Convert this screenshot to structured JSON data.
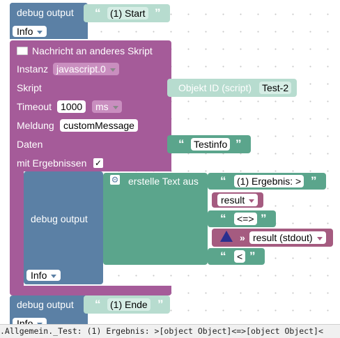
{
  "debug_start": {
    "label": "debug output",
    "text": "(1) Start",
    "level": "Info"
  },
  "send_message": {
    "header": "Nachricht an anderes Skript",
    "instance_label": "Instanz",
    "instance_value": "javascript.0",
    "script_label": "Skript",
    "script_object_label": "Objekt ID (script)",
    "script_object_value": "Test-2",
    "timeout_label": "Timeout",
    "timeout_value": "1000",
    "timeout_unit": "ms",
    "message_label": "Meldung",
    "message_value": "customMessage",
    "data_label": "Daten",
    "data_value": "Testinfo",
    "with_results_label": "mit Ergebnissen",
    "with_results_checked": "✓"
  },
  "debug_inner": {
    "label": "debug output",
    "level": "Info",
    "create_text_label": "erstelle Text aus",
    "items": {
      "text1": "(1) Ergebnis: >",
      "var1": "result",
      "text2": "<=>",
      "stdout_label": "result (stdout)",
      "text3": "<"
    }
  },
  "debug_end": {
    "label": "debug output",
    "text": "(1) Ende",
    "level": "Info"
  },
  "console_line": ".Allgemein._Test: (1) Ergebnis: >[object Object]<=>[object Object]<",
  "colors": {
    "debug_block": "#5b80a5",
    "message_block": "#a55b99",
    "text_block": "#5ba58c",
    "variable_block": "#a55b80"
  }
}
